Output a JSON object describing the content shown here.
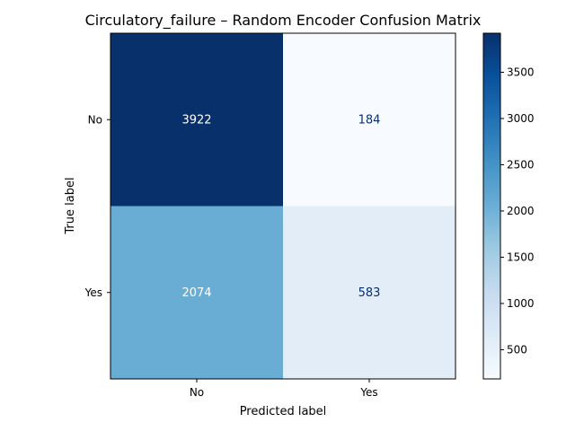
{
  "chart_data": {
    "type": "heatmap",
    "title": "Circulatory_failure – Random Encoder Confusion Matrix",
    "xlabel": "Predicted label",
    "ylabel": "True label",
    "x_categories": [
      "No",
      "Yes"
    ],
    "y_categories": [
      "No",
      "Yes"
    ],
    "values": [
      [
        3922,
        184
      ],
      [
        2074,
        583
      ]
    ],
    "colormap": "Blues",
    "colorbar": {
      "ticks": [
        500,
        1000,
        1500,
        2000,
        2500,
        3000,
        3500
      ],
      "range": [
        184,
        3922
      ]
    },
    "text_colors": {
      "light": "#ffffff",
      "dark": "#08306b"
    }
  }
}
